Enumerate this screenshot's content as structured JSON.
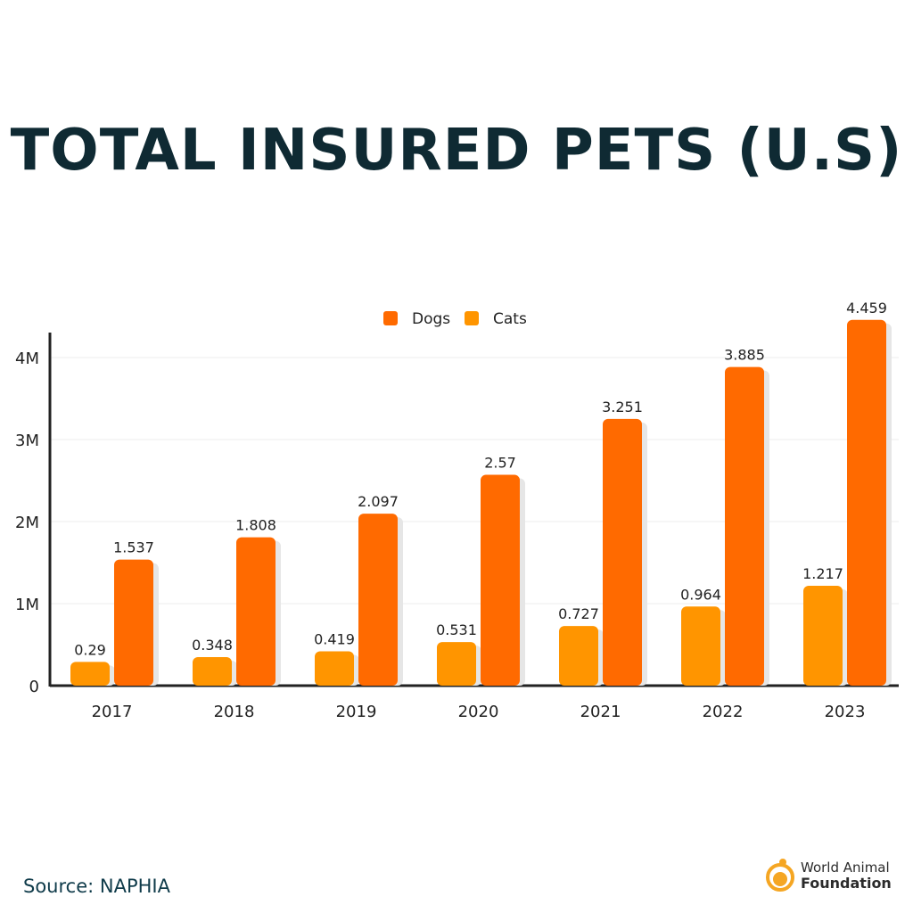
{
  "title": "TOTAL INSURED PETS (U.S)",
  "source": "Source: NAPHIA",
  "logo": {
    "line1": "World Animal",
    "line2": "Foundation"
  },
  "chart_data": {
    "type": "bar",
    "title": "TOTAL INSURED PETS (U.S)",
    "categories": [
      "2017",
      "2018",
      "2019",
      "2020",
      "2021",
      "2022",
      "2023"
    ],
    "series": [
      {
        "name": "Dogs",
        "color": "#ff6a00",
        "values": [
          1.537,
          1.808,
          2.097,
          2.57,
          3.251,
          3.885,
          4.459
        ]
      },
      {
        "name": "Cats",
        "color": "#ff9500",
        "values": [
          0.29,
          0.348,
          0.419,
          0.531,
          0.727,
          0.964,
          1.217
        ]
      }
    ],
    "data_labels": {
      "Dogs": [
        "1.537",
        "1.808",
        "2.097",
        "2.57",
        "3.251",
        "3.885",
        "4.459"
      ],
      "Cats": [
        "0.29",
        "0.348",
        "0.419",
        "0.531",
        "0.727",
        "0.964",
        "1.217"
      ]
    },
    "yticks": [
      0,
      1,
      2,
      3,
      4
    ],
    "ytick_labels": [
      "0",
      "1M",
      "2M",
      "3M",
      "4M"
    ],
    "ylim": [
      0,
      4.4
    ],
    "unit": "millions",
    "grid": true,
    "legend": "top-center",
    "xlabel": "",
    "ylabel": ""
  }
}
